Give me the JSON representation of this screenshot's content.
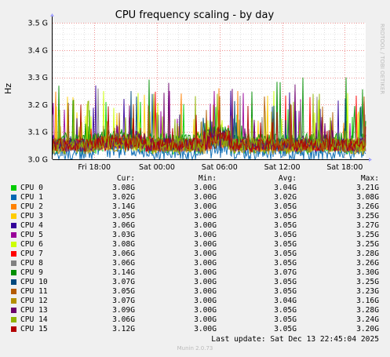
{
  "chart_data": {
    "type": "line",
    "title": "CPU frequency scaling - by day",
    "ylabel": "Hz",
    "xlabel": "",
    "side_label": "RRDTOOL / TOBI OETIKER",
    "ylim": [
      3.0,
      3.5
    ],
    "yticks": [
      {
        "v": 3.5,
        "label": "3.5 G"
      },
      {
        "v": 3.4,
        "label": "3.4 G"
      },
      {
        "v": 3.3,
        "label": "3.3 G"
      },
      {
        "v": 3.2,
        "label": "3.2 G"
      },
      {
        "v": 3.1,
        "label": "3.1 G"
      },
      {
        "v": 3.0,
        "label": "3.0 G"
      }
    ],
    "xrange_hours": [
      0,
      30
    ],
    "xticks": [
      {
        "h": 4,
        "label": "Fri 18:00"
      },
      {
        "h": 10,
        "label": "Sat 00:00"
      },
      {
        "h": 16,
        "label": "Sat 06:00"
      },
      {
        "h": 22,
        "label": "Sat 12:00"
      },
      {
        "h": 28,
        "label": "Sat 18:00"
      }
    ],
    "grid": true,
    "legend_headers": {
      "cur": "Cur:",
      "min": "Min:",
      "avg": "Avg:",
      "max": "Max:"
    },
    "series": [
      {
        "name": "CPU 0",
        "color": "#00cc00",
        "cur": "3.08G",
        "min": "3.00G",
        "avg": "3.04G",
        "max": "3.21G"
      },
      {
        "name": "CPU 1",
        "color": "#0066b3",
        "cur": "3.02G",
        "min": "3.00G",
        "avg": "3.02G",
        "max": "3.08G"
      },
      {
        "name": "CPU 2",
        "color": "#ff8000",
        "cur": "3.14G",
        "min": "3.00G",
        "avg": "3.05G",
        "max": "3.26G"
      },
      {
        "name": "CPU 3",
        "color": "#ffcc00",
        "cur": "3.05G",
        "min": "3.00G",
        "avg": "3.05G",
        "max": "3.25G"
      },
      {
        "name": "CPU 4",
        "color": "#330099",
        "cur": "3.06G",
        "min": "3.00G",
        "avg": "3.05G",
        "max": "3.27G"
      },
      {
        "name": "CPU 5",
        "color": "#990099",
        "cur": "3.03G",
        "min": "3.00G",
        "avg": "3.05G",
        "max": "3.25G"
      },
      {
        "name": "CPU 6",
        "color": "#ccff00",
        "cur": "3.08G",
        "min": "3.00G",
        "avg": "3.05G",
        "max": "3.25G"
      },
      {
        "name": "CPU 7",
        "color": "#ff0000",
        "cur": "3.06G",
        "min": "3.00G",
        "avg": "3.05G",
        "max": "3.28G"
      },
      {
        "name": "CPU 8",
        "color": "#808080",
        "cur": "3.06G",
        "min": "3.00G",
        "avg": "3.05G",
        "max": "3.26G"
      },
      {
        "name": "CPU 9",
        "color": "#008f00",
        "cur": "3.14G",
        "min": "3.00G",
        "avg": "3.07G",
        "max": "3.30G"
      },
      {
        "name": "CPU 10",
        "color": "#00487d",
        "cur": "3.07G",
        "min": "3.00G",
        "avg": "3.05G",
        "max": "3.25G"
      },
      {
        "name": "CPU 11",
        "color": "#b35a00",
        "cur": "3.05G",
        "min": "3.00G",
        "avg": "3.05G",
        "max": "3.23G"
      },
      {
        "name": "CPU 12",
        "color": "#b38f00",
        "cur": "3.07G",
        "min": "3.00G",
        "avg": "3.04G",
        "max": "3.16G"
      },
      {
        "name": "CPU 13",
        "color": "#6b006b",
        "cur": "3.09G",
        "min": "3.00G",
        "avg": "3.05G",
        "max": "3.28G"
      },
      {
        "name": "CPU 14",
        "color": "#8fb300",
        "cur": "3.06G",
        "min": "3.00G",
        "avg": "3.05G",
        "max": "3.24G"
      },
      {
        "name": "CPU 15",
        "color": "#b30000",
        "cur": "3.12G",
        "min": "3.00G",
        "avg": "3.05G",
        "max": "3.20G"
      }
    ]
  },
  "footer": {
    "last_update": "Last update: Sat Dec 13 22:45:04 2025",
    "version": "Munin 2.0.73"
  }
}
